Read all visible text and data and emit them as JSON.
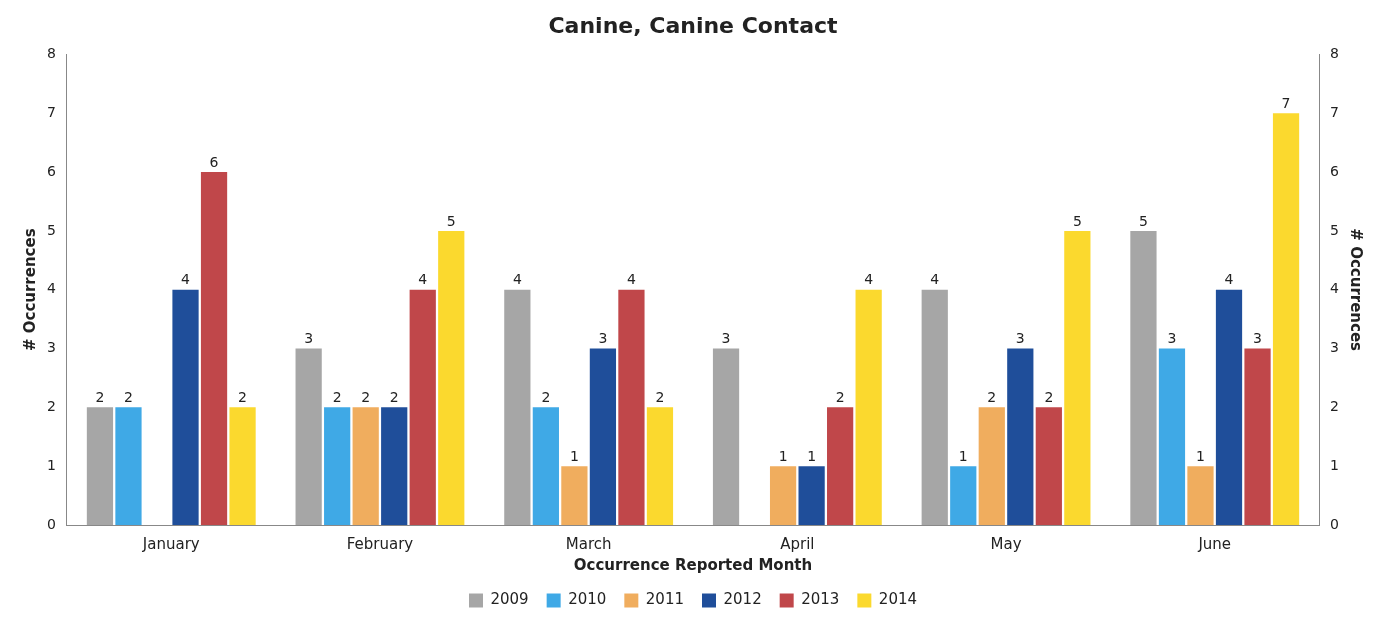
{
  "chart_data": {
    "type": "bar",
    "title": "Canine, Canine Contact",
    "xlabel": "Occurrence Reported Month",
    "ylabel": "# Occurrences",
    "y2label": "# Occurrences",
    "categories": [
      "January",
      "February",
      "March",
      "April",
      "May",
      "June"
    ],
    "series": [
      {
        "name": "2009",
        "color": "#a6a6a6",
        "values": [
          2,
          3,
          4,
          3,
          4,
          5
        ]
      },
      {
        "name": "2010",
        "color": "#3fa9e6",
        "values": [
          2,
          2,
          2,
          null,
          1,
          3
        ]
      },
      {
        "name": "2011",
        "color": "#f0ad5e",
        "values": [
          null,
          2,
          1,
          1,
          2,
          1
        ]
      },
      {
        "name": "2012",
        "color": "#1f4e9a",
        "values": [
          4,
          2,
          3,
          1,
          3,
          4
        ]
      },
      {
        "name": "2013",
        "color": "#c0474a",
        "values": [
          6,
          4,
          4,
          2,
          2,
          3
        ]
      },
      {
        "name": "2014",
        "color": "#fbd92e",
        "values": [
          2,
          5,
          2,
          4,
          5,
          7
        ]
      }
    ],
    "ylim": [
      0,
      8
    ],
    "yticks": [
      0,
      1,
      2,
      3,
      4,
      5,
      6,
      7,
      8
    ],
    "y2lim": [
      0,
      8
    ],
    "y2ticks": [
      0,
      1,
      2,
      3,
      4,
      5,
      6,
      7,
      8
    ],
    "grid": false,
    "legend": "bottom",
    "data_labels": true
  }
}
